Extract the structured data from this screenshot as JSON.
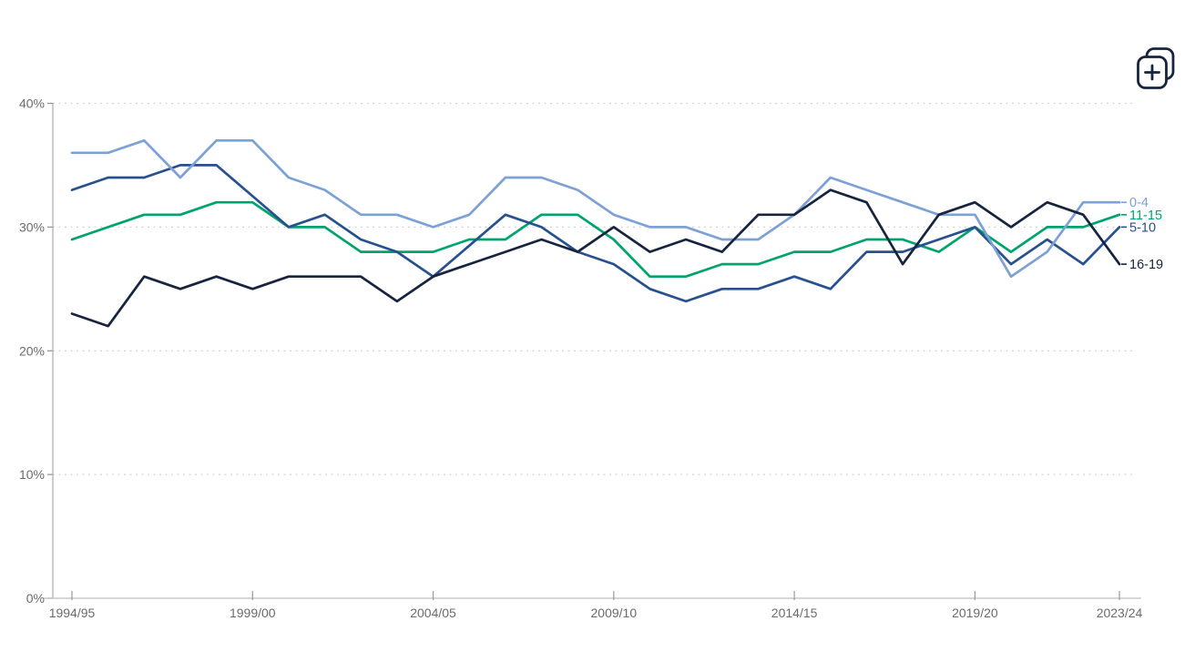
{
  "toolbar": {
    "compare_button_icon": "add-chart-icon"
  },
  "chart_data": {
    "type": "line",
    "title": "",
    "xlabel": "",
    "ylabel": "",
    "grid": "horizontal-dashed",
    "legend_position": "right-end-labels",
    "ylim": [
      0,
      40
    ],
    "y_tick_labels": [
      "0%",
      "10%",
      "20%",
      "30%",
      "40%"
    ],
    "y_tick_values": [
      0,
      10,
      20,
      30,
      40
    ],
    "x_axis_labeled_ticks": [
      "1994/95",
      "1999/00",
      "2004/05",
      "2009/10",
      "2014/15",
      "2019/20",
      "2023/24"
    ],
    "categories": [
      "1994/95",
      "1995/96",
      "1996/97",
      "1997/98",
      "1998/99",
      "1999/00",
      "2000/01",
      "2001/02",
      "2002/03",
      "2003/04",
      "2004/05",
      "2005/06",
      "2006/07",
      "2007/08",
      "2008/09",
      "2009/10",
      "2010/11",
      "2011/12",
      "2012/13",
      "2013/14",
      "2014/15",
      "2015/16",
      "2016/17",
      "2017/18",
      "2018/19",
      "2019/20",
      "2020/21",
      "2021/22",
      "2022/23",
      "2023/24"
    ],
    "series": [
      {
        "name": "11-15",
        "color": "#00a36e",
        "values": [
          29,
          30,
          31,
          31,
          32,
          32,
          30,
          30,
          28,
          28,
          28,
          29,
          29,
          31,
          31,
          29,
          26,
          26,
          27,
          27,
          28,
          28,
          29,
          29,
          28,
          30,
          28,
          30,
          30,
          31
        ]
      },
      {
        "name": "5-10",
        "color": "#27508e",
        "values": [
          33,
          34,
          34,
          35,
          35,
          32.5,
          30,
          31,
          29,
          28,
          26,
          28.5,
          31,
          30,
          28,
          27,
          25,
          24,
          25,
          25,
          26,
          25,
          28,
          28,
          29,
          30,
          27,
          29,
          27,
          30
        ]
      },
      {
        "name": "0-4",
        "color": "#7da1d6",
        "values": [
          36,
          36,
          37,
          34,
          37,
          37,
          34,
          33,
          31,
          31,
          30,
          31,
          34,
          34,
          33,
          31,
          30,
          30,
          29,
          29,
          31,
          34,
          33,
          32,
          31,
          31,
          26,
          28,
          32,
          32
        ]
      },
      {
        "name": "16-19",
        "color": "#16243d",
        "values": [
          23,
          22,
          26,
          25,
          26,
          25,
          26,
          26,
          26,
          24,
          26,
          27,
          28,
          29,
          28,
          30,
          28,
          29,
          28,
          31,
          31,
          33,
          32,
          27,
          31,
          32,
          30,
          32,
          31,
          27
        ]
      }
    ],
    "end_label_order_top_to_bottom": [
      "0-4",
      "11-15",
      "5-10",
      "16-19"
    ]
  }
}
